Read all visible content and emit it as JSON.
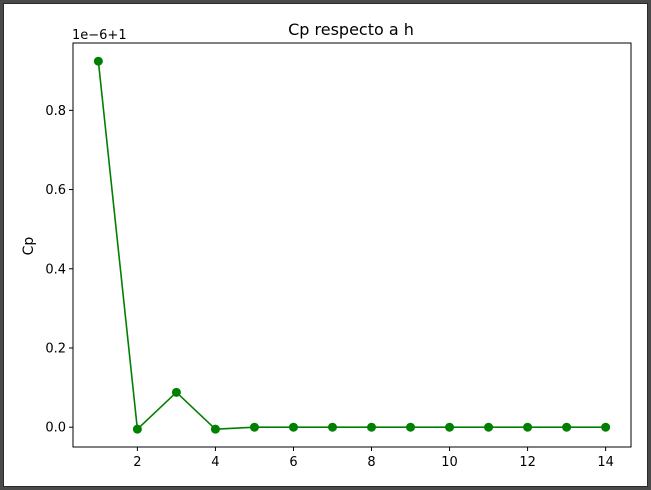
{
  "chart_data": {
    "type": "line",
    "title": "Cp respecto a h",
    "xlabel": "",
    "ylabel": "Cp",
    "offset_text": "1e−6+1",
    "x": [
      1,
      2,
      3,
      4,
      5,
      6,
      7,
      8,
      9,
      10,
      11,
      12,
      13,
      14
    ],
    "series": [
      {
        "values": [
          0.924,
          -0.005,
          0.088,
          -0.005,
          0.0,
          0.0,
          0.0,
          0.0,
          0.0,
          0.0,
          0.0,
          0.0,
          0.0,
          0.0
        ],
        "color": "#008000",
        "marker": "circle"
      }
    ],
    "xticks": [
      2,
      4,
      6,
      8,
      10,
      12,
      14
    ],
    "xtick_labels": [
      "2",
      "4",
      "6",
      "8",
      "10",
      "12",
      "14"
    ],
    "yticks": [
      0.0,
      0.2,
      0.4,
      0.6,
      0.8
    ],
    "ytick_labels": [
      "0.0",
      "0.2",
      "0.4",
      "0.6",
      "0.8"
    ],
    "xlim": [
      0.35,
      14.65
    ],
    "ylim": [
      -0.05,
      0.97
    ],
    "grid": false,
    "legend": "none"
  }
}
